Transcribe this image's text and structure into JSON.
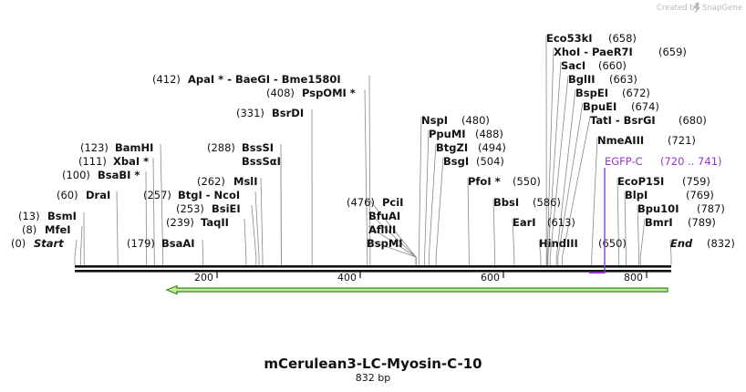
{
  "credit": {
    "prefix": "Created by",
    "brand": "SnapGene"
  },
  "plasmid": {
    "name": "mCerulean3-LC-Myosin-C-10",
    "length_label": "832 bp",
    "length": 832
  },
  "colors": {
    "backbone": "#111111",
    "arrow": "#2d8a1a",
    "arrow_fill": "#c8e89a",
    "feature": "#9933cc",
    "leader": "#888888"
  },
  "ticks": [
    "200",
    "400",
    "600",
    "800"
  ],
  "feature": {
    "name": "EGFP-C",
    "range": "(720 .. 741)"
  },
  "sites": [
    {
      "pos": "(0)",
      "name": "Start",
      "bp": 0,
      "style": "italic"
    },
    {
      "pos": "(8)",
      "name": "MfeI",
      "bp": 8
    },
    {
      "pos": "(13)",
      "name": "BsmI",
      "bp": 13
    },
    {
      "pos": "(60)",
      "name": "DraI",
      "bp": 60
    },
    {
      "pos": "(100)",
      "name": "BsaBI *",
      "bp": 100
    },
    {
      "pos": "(111)",
      "name": "XbaI *",
      "bp": 111
    },
    {
      "pos": "(123)",
      "name": "BamHI",
      "bp": 123
    },
    {
      "pos": "(179)",
      "name": "BsaAI",
      "bp": 179
    },
    {
      "pos": "(239)",
      "name": "TaqII",
      "bp": 239
    },
    {
      "pos": "(253)",
      "name": "BsiEI",
      "bp": 253
    },
    {
      "pos": "(257)",
      "name": "BtgI  - NcoI",
      "bp": 257
    },
    {
      "pos": "(262)",
      "name": "MslI",
      "bp": 262
    },
    {
      "pos": "(288)",
      "name": "BssSI",
      "bp": 288
    },
    {
      "pos": "",
      "name": "BssSαI",
      "bp": 288
    },
    {
      "pos": "(331)",
      "name": "BsrDI",
      "bp": 331
    },
    {
      "pos": "(408)",
      "name": "PspOMI *",
      "bp": 408
    },
    {
      "pos": "(412)",
      "name": "ApaI *  - BaeGI  - Bme1580I",
      "bp": 412
    },
    {
      "pos": "(476)",
      "name": "PciI",
      "bp": 476
    },
    {
      "pos": "",
      "name": "BfuAI",
      "bp": 476
    },
    {
      "pos": "",
      "name": "AflIII",
      "bp": 476
    },
    {
      "pos": "",
      "name": "BspMI",
      "bp": 476
    },
    {
      "pos": "(480)",
      "name": "NspI",
      "bp": 480
    },
    {
      "pos": "(488)",
      "name": "PpuMI",
      "bp": 488
    },
    {
      "pos": "(494)",
      "name": "BtgZI",
      "bp": 494
    },
    {
      "pos": "(504)",
      "name": "BsgI",
      "bp": 504
    },
    {
      "pos": "(550)",
      "name": "PfoI *",
      "bp": 550
    },
    {
      "pos": "(586)",
      "name": "BbsI",
      "bp": 586
    },
    {
      "pos": "(613)",
      "name": "EarI",
      "bp": 613
    },
    {
      "pos": "(650)",
      "name": "HindIII",
      "bp": 650
    },
    {
      "pos": "(658)",
      "name": "Eco53kI",
      "bp": 658
    },
    {
      "pos": "(659)",
      "name": "XhoI  - PaeR7I",
      "bp": 659
    },
    {
      "pos": "(660)",
      "name": "SacI",
      "bp": 660
    },
    {
      "pos": "(663)",
      "name": "BglII",
      "bp": 663
    },
    {
      "pos": "(672)",
      "name": "BspEI",
      "bp": 672
    },
    {
      "pos": "(674)",
      "name": "BpuEI",
      "bp": 674
    },
    {
      "pos": "(680)",
      "name": "TatI  - BsrGI",
      "bp": 680
    },
    {
      "pos": "(721)",
      "name": "NmeAIII",
      "bp": 721
    },
    {
      "pos": "(759)",
      "name": "EcoP15I",
      "bp": 759
    },
    {
      "pos": "(769)",
      "name": "BlpI",
      "bp": 769
    },
    {
      "pos": "(787)",
      "name": "Bpu10I",
      "bp": 787
    },
    {
      "pos": "(789)",
      "name": "BmrI",
      "bp": 789
    },
    {
      "pos": "(832)",
      "name": "End",
      "bp": 832,
      "style": "italic"
    }
  ]
}
